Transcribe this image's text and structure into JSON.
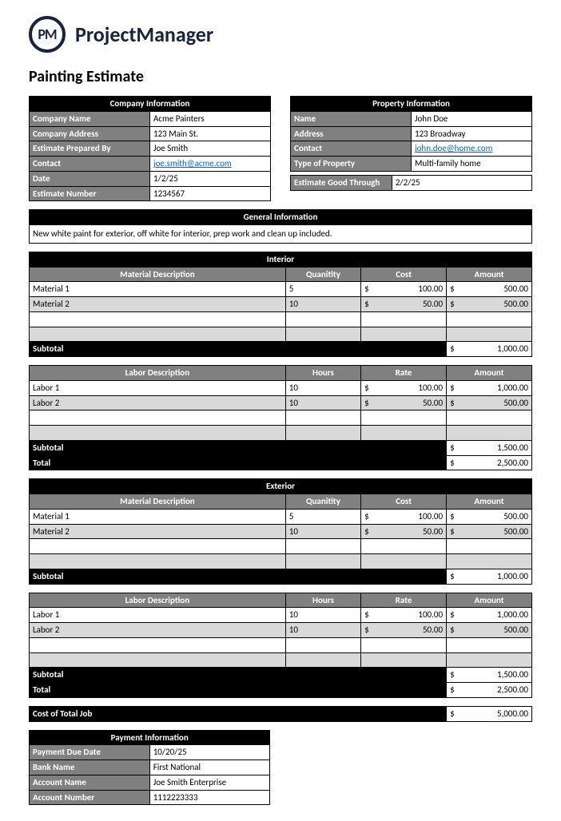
{
  "brand": {
    "initials": "PM",
    "name": "ProjectManager"
  },
  "title": "Painting Estimate",
  "company": {
    "section": "Company Information",
    "rows": [
      {
        "label": "Company Name",
        "value": "Acme Painters"
      },
      {
        "label": "Company Address",
        "value": "123 Main St."
      },
      {
        "label": "Estimate Prepared By",
        "value": "Joe Smith"
      },
      {
        "label": "Contact",
        "value": "joe.smith@acme.com",
        "link": true
      },
      {
        "label": "Date",
        "value": "1/2/25"
      },
      {
        "label": "Estimate Number",
        "value": "1234567"
      }
    ]
  },
  "property": {
    "section": "Property Information",
    "rows": [
      {
        "label": "Name",
        "value": "John Doe"
      },
      {
        "label": "Address",
        "value": "123 Broadway"
      },
      {
        "label": "Contact",
        "value": "john.doe@home.com",
        "link": true
      },
      {
        "label": "Type of Property",
        "value": "Multi-family home"
      }
    ],
    "good_through": {
      "label": "Estimate Good Through",
      "value": "2/2/25"
    }
  },
  "general": {
    "heading": "General Information",
    "text": "New white paint for exterior, off white for interior, prep work and clean up included."
  },
  "style": {
    "colors": {
      "black": "#000000",
      "gray": "#808080",
      "alt": "#d9d9d9",
      "white": "#ffffff",
      "link": "#0563c1",
      "logo": "#18233d"
    }
  },
  "grid": {
    "col_widths_pct": [
      51,
      15,
      17,
      17
    ],
    "headers": {
      "material": "Material Description",
      "labor": "Labor Description",
      "qty": "Quanitity",
      "hours": "Hours",
      "cost": "Cost",
      "rate": "Rate",
      "amount": "Amount"
    },
    "labels": {
      "subtotal": "Subtotal",
      "total": "Total",
      "cost_total": "Cost of Total Job"
    }
  },
  "interior": {
    "section": "Interior",
    "materials": [
      {
        "desc": "Material 1",
        "qty": "5",
        "cost": "100.00",
        "amount": "500.00"
      },
      {
        "desc": "Material 2",
        "qty": "10",
        "cost": "50.00",
        "amount": "500.00"
      }
    ],
    "materials_subtotal": "1,000.00",
    "labor": [
      {
        "desc": "Labor 1",
        "qty": "10",
        "cost": "100.00",
        "amount": "1,000.00"
      },
      {
        "desc": "Labor 2",
        "qty": "10",
        "cost": "50.00",
        "amount": "500.00"
      }
    ],
    "labor_subtotal": "1,500.00",
    "total": "2,500.00"
  },
  "exterior": {
    "section": "Exterior",
    "materials": [
      {
        "desc": "Material 1",
        "qty": "5",
        "cost": "100.00",
        "amount": "500.00"
      },
      {
        "desc": "Material 2",
        "qty": "10",
        "cost": "50.00",
        "amount": "500.00"
      }
    ],
    "materials_subtotal": "1,000.00",
    "labor": [
      {
        "desc": "Labor 1",
        "qty": "10",
        "cost": "100.00",
        "amount": "1,000.00"
      },
      {
        "desc": "Labor 2",
        "qty": "10",
        "cost": "50.00",
        "amount": "500.00"
      }
    ],
    "labor_subtotal": "1,500.00",
    "total": "2,500.00"
  },
  "cost_total_job": "5,000.00",
  "payment": {
    "section": "Payment Information",
    "rows": [
      {
        "label": "Payment Due Date",
        "value": "10/20/25"
      },
      {
        "label": "Bank Name",
        "value": "First National"
      },
      {
        "label": "Account Name",
        "value": "Joe Smith Enterprise"
      },
      {
        "label": "Account Number",
        "value": "1112223333"
      }
    ]
  }
}
